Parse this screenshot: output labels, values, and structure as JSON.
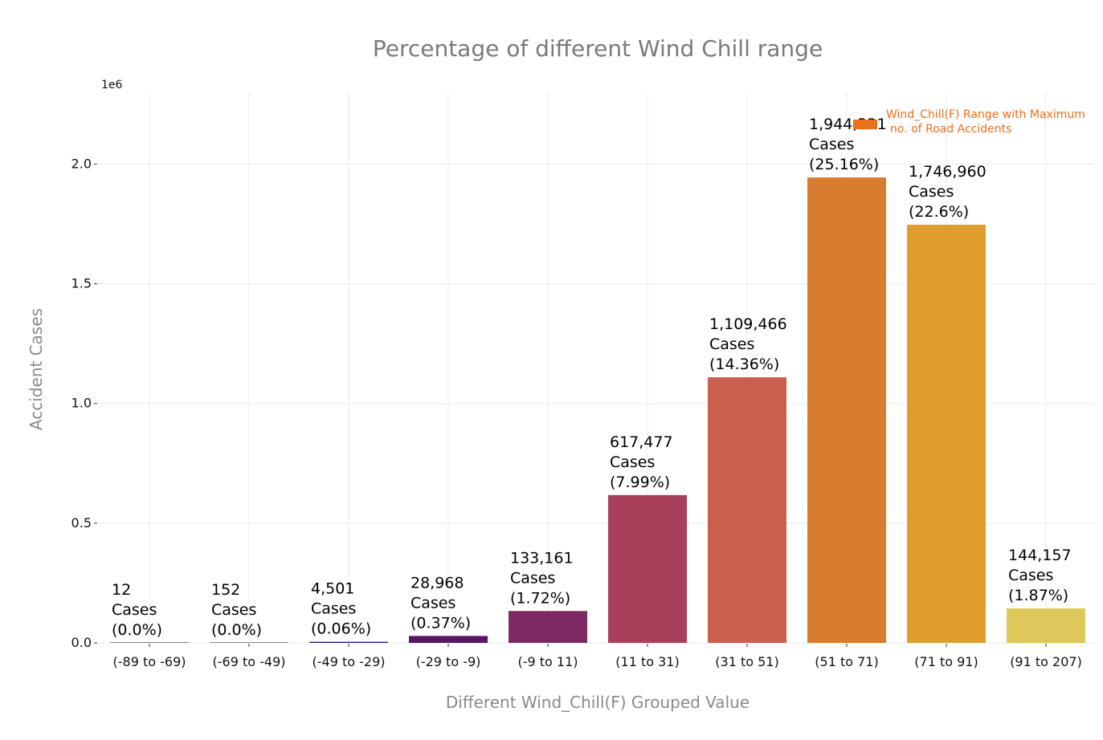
{
  "chart_data": {
    "type": "bar",
    "title": "Percentage of different Wind Chill range",
    "xlabel": "Different Wind_Chill(F) Grouped Value",
    "ylabel": "Accident Cases",
    "y_offset_label": "1e6",
    "ylim": [
      0,
      2.3
    ],
    "yticks": [
      "0.0",
      "0.5",
      "1.0",
      "1.5",
      "2.0"
    ],
    "grid": true,
    "legend": {
      "placement": "top-right",
      "line1": "Wind_Chill(F) Range with Maximum",
      "line2": "no. of Road Accidents",
      "color": "#e8711c"
    },
    "categories": [
      "(-89 to -69)",
      "(-69 to -49)",
      "(-49 to -29)",
      "(-29 to -9)",
      "(-9 to 11)",
      "(11 to 31)",
      "(31 to 51)",
      "(51 to 71)",
      "(71 to 91)",
      "(91 to 207)"
    ],
    "values": [
      12,
      152,
      4501,
      28968,
      133161,
      617477,
      1109466,
      1944321,
      1746960,
      144157
    ],
    "count_labels": [
      "12",
      "152",
      "4,501",
      "28,968",
      "133,161",
      "617,477",
      "1,109,466",
      "1,944,321",
      "1,746,960",
      "144,157"
    ],
    "cases_word": "Cases",
    "percent_labels": [
      "(0.0%)",
      "(0.0%)",
      "(0.06%)",
      "(0.37%)",
      "(1.72%)",
      "(7.99%)",
      "(14.36%)",
      "(25.16%)",
      "(22.6%)",
      "(1.87%)"
    ],
    "colors": [
      "#0d0829",
      "#1f0c48",
      "#3b0f70",
      "#5c1466",
      "#7d2a63",
      "#a8405c",
      "#c9604d",
      "#d87c30",
      "#df9e2b",
      "#dfc85a"
    ]
  }
}
